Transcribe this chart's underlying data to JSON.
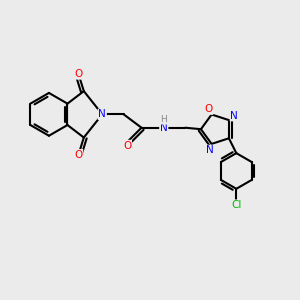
{
  "background_color": "#ebebeb",
  "bond_color": "#000000",
  "atom_colors": {
    "N": "#0000ff",
    "O": "#ff0000",
    "Cl": "#00bb00",
    "H": "#888888",
    "C": "#000000"
  },
  "figsize": [
    3.0,
    3.0
  ],
  "dpi": 100
}
